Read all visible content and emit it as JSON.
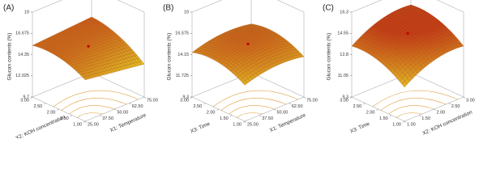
{
  "chart_data": [
    {
      "type": "surface",
      "panel": "(A)",
      "zlabel": "Glucan contents (%)",
      "xlabel": "X2: KOH concentration",
      "ylabel": "X1: Temperature",
      "xlim": [
        1,
        3
      ],
      "xticks": [
        {
          "value": 3,
          "label": "3.00"
        },
        {
          "value": 2.5,
          "label": "2.50"
        },
        {
          "value": 2,
          "label": "2.00"
        },
        {
          "value": 1.5,
          "label": "1.50"
        },
        {
          "value": 1,
          "label": "1.00"
        }
      ],
      "ylim": [
        25,
        75
      ],
      "yticks": [
        {
          "value": 75,
          "label": "75.00"
        },
        {
          "value": 62.5,
          "label": "62.50"
        },
        {
          "value": 50,
          "label": "50.00"
        },
        {
          "value": 37.5,
          "label": "37.50"
        },
        {
          "value": 25,
          "label": "25.00"
        }
      ],
      "zlim": [
        9.7,
        19
      ],
      "zticks": [
        19,
        16.675,
        14.35,
        12.025,
        9.7
      ]
    },
    {
      "type": "surface",
      "panel": "(B)",
      "zlabel": "Glucan contents (%)",
      "xlabel": "X3: Time",
      "ylabel": "X1: Temperature",
      "xlim": [
        1,
        3
      ],
      "xticks": [
        {
          "value": 3,
          "label": "3.00"
        },
        {
          "value": 2.5,
          "label": "2.50"
        },
        {
          "value": 2,
          "label": "2.00"
        },
        {
          "value": 1.5,
          "label": "1.50"
        },
        {
          "value": 1,
          "label": "1.00"
        }
      ],
      "ylim": [
        25,
        75
      ],
      "yticks": [
        {
          "value": 75,
          "label": "75.00"
        },
        {
          "value": 62.5,
          "label": "62.50"
        },
        {
          "value": 50,
          "label": "50.00"
        },
        {
          "value": 37.5,
          "label": "37.50"
        },
        {
          "value": 25,
          "label": "25.00"
        }
      ],
      "zlim": [
        9.3,
        19
      ],
      "zticks": [
        19,
        16.575,
        14.15,
        11.725,
        9.3
      ]
    },
    {
      "type": "surface",
      "panel": "(C)",
      "zlabel": "Glucan contents (%)",
      "xlabel": "X3: Time",
      "ylabel": "X2: KOH concentration",
      "xlim": [
        1,
        3
      ],
      "xticks": [
        {
          "value": 3,
          "label": "3.00"
        },
        {
          "value": 2.5,
          "label": "2.50"
        },
        {
          "value": 2,
          "label": "2.00"
        },
        {
          "value": 1.5,
          "label": "1.50"
        },
        {
          "value": 1,
          "label": "1.00"
        }
      ],
      "ylim": [
        1,
        3
      ],
      "yticks": [
        {
          "value": 3,
          "label": "3.00"
        },
        {
          "value": 2.5,
          "label": "2.50"
        },
        {
          "value": 2,
          "label": "2.00"
        },
        {
          "value": 1.5,
          "label": "1.50"
        },
        {
          "value": 1,
          "label": "1.00"
        }
      ],
      "zlim": [
        9.3,
        16.3
      ],
      "zticks": [
        16.3,
        14.55,
        12.8,
        11.05,
        9.3
      ]
    }
  ]
}
